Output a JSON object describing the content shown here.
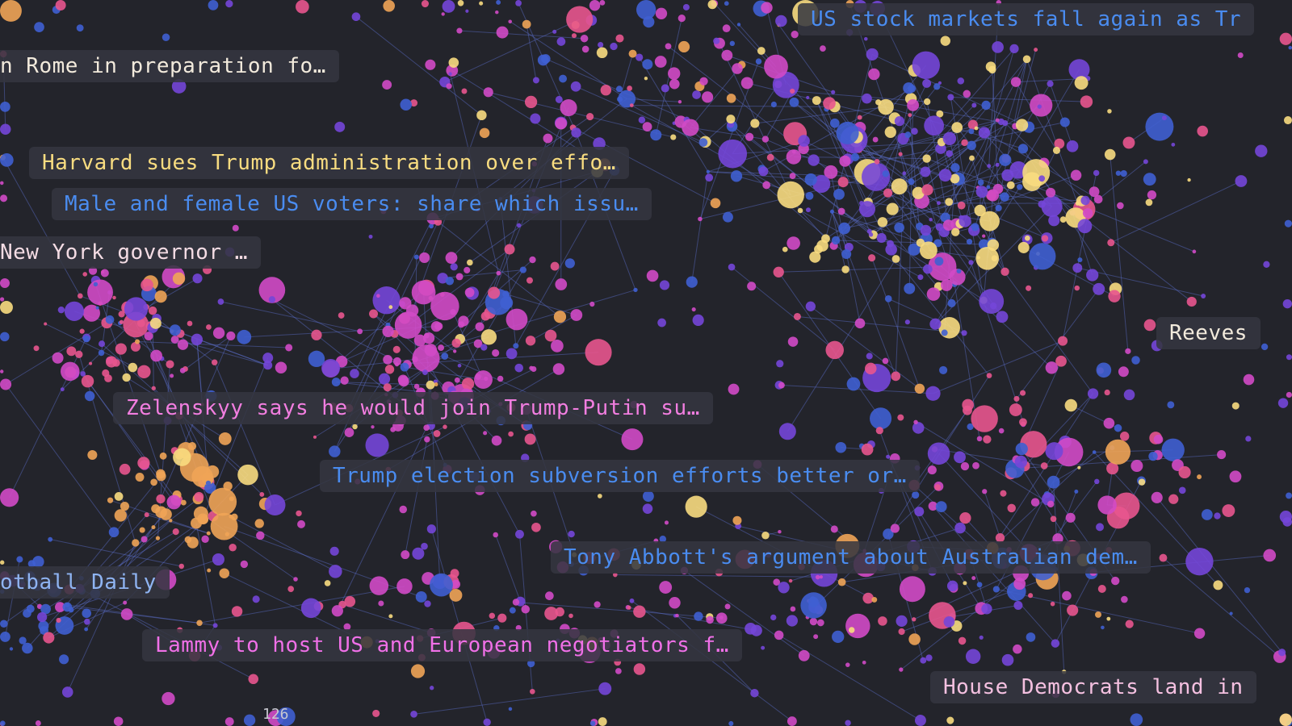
{
  "labels": [
    {
      "text": "n Rome in preparation fo…",
      "color": "#f2eadc"
    },
    {
      "text": "Harvard sues Trump administration over effo…",
      "color": "#f8dc80"
    },
    {
      "text": "Male and female US voters: share which issu…",
      "color": "#4a8cf0"
    },
    {
      "text": "New York governor …",
      "color": "#f4dce4"
    },
    {
      "text": "Zelenskyy says he would join Trump-Putin su…",
      "color": "#f27ee0"
    },
    {
      "text": "Trump election subversion efforts better or…",
      "color": "#4a8cf0"
    },
    {
      "text": "Tony Abbott's argument about Australian dem…",
      "color": "#4a8cf0"
    },
    {
      "text": "otball Daily",
      "color": "#8fb4f2"
    },
    {
      "text": "Lammy to host US and European negotiators f…",
      "color": "#f070e8"
    },
    {
      "text": "House Democrats land in",
      "color": "#f4c0e0"
    },
    {
      "text": "US stock markets fall again as Tr",
      "color": "#4a8cf0"
    },
    {
      "text": "Reeves",
      "color": "#f2eadc"
    }
  ],
  "count_text": "126",
  "colors": {
    "background": "#23242b",
    "edge": "#5d70d0",
    "nodes": [
      "#3f5fd2",
      "#7446d8",
      "#d24ac6",
      "#e8558e",
      "#f0a456",
      "#f8dc80"
    ]
  }
}
